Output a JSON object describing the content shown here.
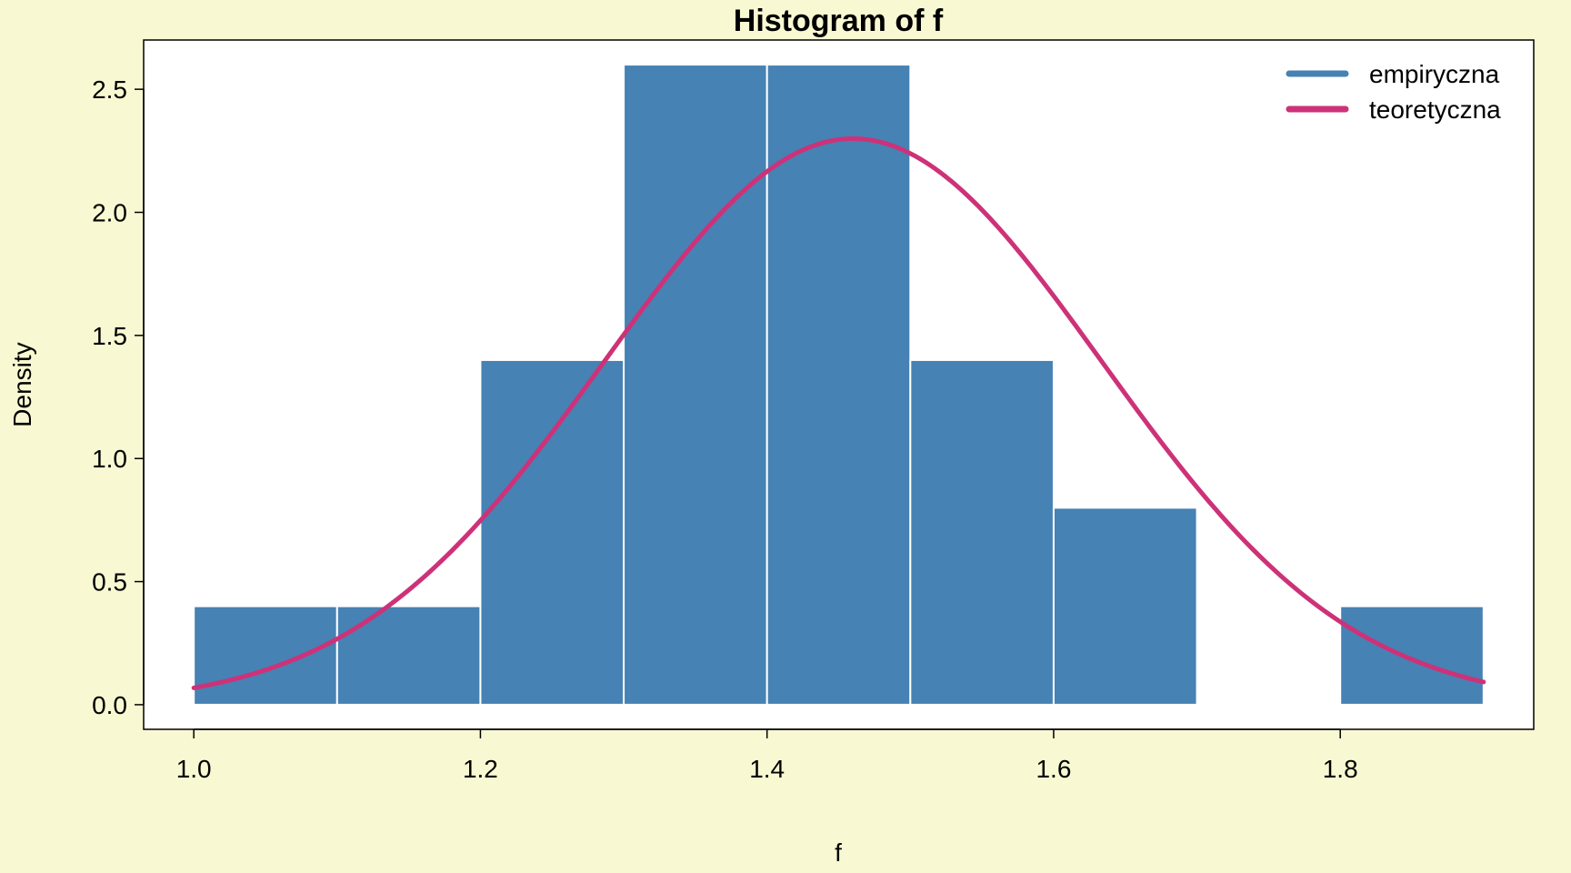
{
  "chart_data": {
    "type": "bar",
    "title": "Histogram of f",
    "xlabel": "f",
    "ylabel": "Density",
    "xlim": [
      0.965,
      1.935
    ],
    "ylim": [
      -0.1,
      2.7
    ],
    "x_ticks": [
      "1.0",
      "1.2",
      "1.4",
      "1.6",
      "1.8"
    ],
    "x_tick_values": [
      1.0,
      1.2,
      1.4,
      1.6,
      1.8
    ],
    "y_ticks": [
      "0.0",
      "0.5",
      "1.0",
      "1.5",
      "2.0",
      "2.5"
    ],
    "y_tick_values": [
      0.0,
      0.5,
      1.0,
      1.5,
      2.0,
      2.5
    ],
    "bins": [
      {
        "start": 1.0,
        "end": 1.1,
        "density": 0.4
      },
      {
        "start": 1.1,
        "end": 1.2,
        "density": 0.4
      },
      {
        "start": 1.2,
        "end": 1.3,
        "density": 1.4
      },
      {
        "start": 1.3,
        "end": 1.4,
        "density": 2.6
      },
      {
        "start": 1.4,
        "end": 1.5,
        "density": 2.6
      },
      {
        "start": 1.5,
        "end": 1.6,
        "density": 1.4
      },
      {
        "start": 1.6,
        "end": 1.7,
        "density": 0.8
      },
      {
        "start": 1.7,
        "end": 1.8,
        "density": 0.0
      },
      {
        "start": 1.8,
        "end": 1.9,
        "density": 0.4
      }
    ],
    "density_curve": {
      "name": "teoretyczna",
      "distribution": "normal",
      "mean": 1.46,
      "sd": 0.1735,
      "x_range": [
        1.0,
        1.9
      ]
    },
    "legend": {
      "position": "top-right",
      "entries": [
        {
          "label": "empiryczna",
          "color": "#4682b4"
        },
        {
          "label": "teoretyczna",
          "color": "#cd3278"
        }
      ]
    },
    "grid": false,
    "colors": {
      "background": "#f8f8d2",
      "panel": "#ffffff",
      "bar_fill": "#4682b4",
      "bar_border": "#ffffff",
      "curve": "#cd3278"
    }
  }
}
